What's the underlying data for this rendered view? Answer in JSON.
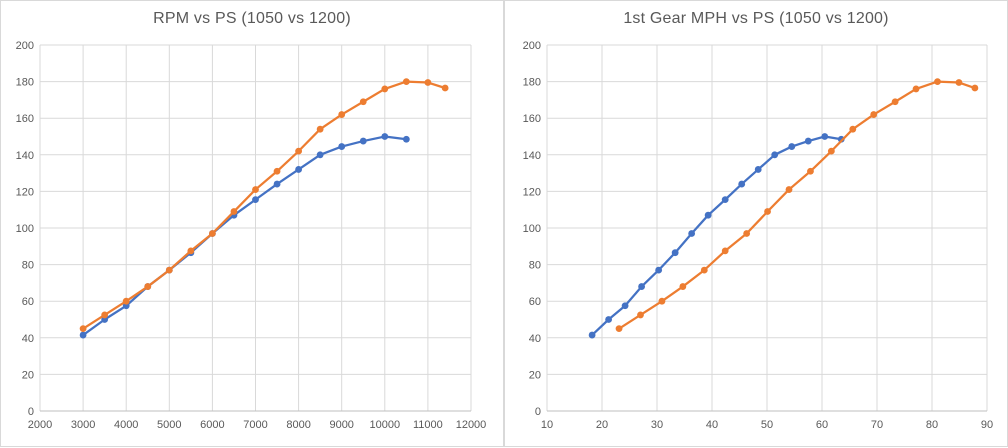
{
  "colors": {
    "background": "#FFFFFF",
    "panel_border": "#D9D9D9",
    "gridline": "#D9D9D9",
    "axis_line": "#BFBFBF",
    "tick_label": "#595959",
    "title": "#595959",
    "series_blue": "#4472C4",
    "series_orange": "#ED7D31"
  },
  "chart_data": [
    {
      "type": "line",
      "title": "RPM vs PS (1050 vs 1200)",
      "xlabel": "",
      "ylabel": "",
      "xlim": [
        2000,
        12000
      ],
      "ylim": [
        0,
        200
      ],
      "xticks": [
        2000,
        3000,
        4000,
        5000,
        6000,
        7000,
        8000,
        9000,
        10000,
        11000,
        12000
      ],
      "yticks": [
        0,
        20,
        40,
        60,
        80,
        100,
        120,
        140,
        160,
        180,
        200
      ],
      "grid": true,
      "legend": "none",
      "marker": "circle",
      "series": [
        {
          "name": "1050",
          "color": "#4472C4",
          "x": [
            3000,
            3500,
            4000,
            4500,
            5000,
            5500,
            6000,
            6500,
            7000,
            7500,
            8000,
            8500,
            9000,
            9500,
            10000,
            10500
          ],
          "y": [
            41.5,
            50,
            57.5,
            68,
            77,
            86.5,
            97,
            107,
            115.5,
            124,
            132,
            140,
            144.5,
            147.5,
            150,
            148.5
          ]
        },
        {
          "name": "1200",
          "color": "#ED7D31",
          "x": [
            3000,
            3500,
            4000,
            4500,
            5000,
            5500,
            6000,
            6500,
            7000,
            7500,
            8000,
            8500,
            9000,
            9500,
            10000,
            10500,
            11000,
            11400
          ],
          "y": [
            45,
            52.5,
            60,
            68,
            77,
            87.5,
            97,
            109,
            121,
            131,
            142,
            154,
            162,
            169,
            176,
            180,
            179.5,
            176.5
          ]
        }
      ]
    },
    {
      "type": "line",
      "title": "1st Gear MPH vs PS (1050 vs 1200)",
      "xlabel": "",
      "ylabel": "",
      "xlim": [
        10,
        90
      ],
      "ylim": [
        0,
        200
      ],
      "xticks": [
        10,
        20,
        30,
        40,
        50,
        60,
        70,
        80,
        90
      ],
      "yticks": [
        0,
        20,
        40,
        60,
        80,
        100,
        120,
        140,
        160,
        180,
        200
      ],
      "grid": true,
      "legend": "none",
      "marker": "circle",
      "series": [
        {
          "name": "1050",
          "color": "#4472C4",
          "x": [
            18.2,
            21.2,
            24.2,
            27.2,
            30.3,
            33.3,
            36.3,
            39.3,
            42.4,
            45.4,
            48.4,
            51.4,
            54.5,
            57.5,
            60.5,
            63.5
          ],
          "y": [
            41.5,
            50,
            57.5,
            68,
            77,
            86.5,
            97,
            107,
            115.5,
            124,
            132,
            140,
            144.5,
            147.5,
            150,
            148.5
          ]
        },
        {
          "name": "1200",
          "color": "#ED7D31",
          "x": [
            23.1,
            27.0,
            30.9,
            34.7,
            38.6,
            42.4,
            46.3,
            50.1,
            54.0,
            57.9,
            61.7,
            65.6,
            69.4,
            73.3,
            77.1,
            81.0,
            84.9,
            87.8
          ],
          "y": [
            45,
            52.5,
            60,
            68,
            77,
            87.5,
            97,
            109,
            121,
            131,
            142,
            154,
            162,
            169,
            176,
            180,
            179.5,
            176.5
          ]
        }
      ]
    }
  ]
}
